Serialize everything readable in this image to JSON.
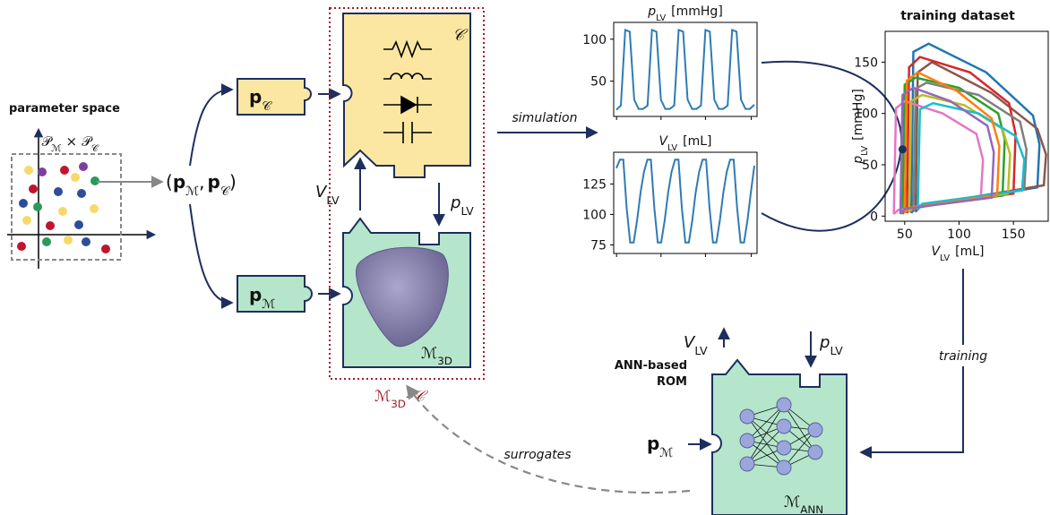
{
  "parameter_space": {
    "title": "parameter space",
    "set_m": {
      "main": "𝒫",
      "sub": "ℳ"
    },
    "times": "×",
    "set_c": {
      "main": "𝒫",
      "sub": "𝒞"
    }
  },
  "parameter_pair": {
    "open": "(",
    "first": {
      "main": "p",
      "sub": "ℳ"
    },
    "separator": ",",
    "second": {
      "main": "p",
      "sub": "𝒞"
    },
    "close": ")"
  },
  "circuit_params": {
    "main": "p",
    "sub": "𝒞"
  },
  "model_params": {
    "main": "p",
    "sub": "ℳ"
  },
  "circulation_model": "𝒞",
  "coupling": {
    "volume": {
      "main": "V",
      "sub": "LV"
    },
    "pressure": {
      "main": "p",
      "sub": "LV"
    }
  },
  "heart_model": {
    "main": "ℳ",
    "sub": "3D"
  },
  "coupled_model": {
    "main": "ℳ",
    "sub": "3D",
    "suffix": "–𝒞"
  },
  "simulation": {
    "label": "simulation",
    "pressure_plot": {
      "title": {
        "main": "p",
        "sub": "LV",
        "unit": "[mmHg]"
      },
      "ylim": [
        8,
        120
      ],
      "yticks": [
        50,
        100
      ],
      "color": "#2f7bb3",
      "values": [
        16,
        21,
        111,
        109,
        28,
        17,
        17,
        21,
        111,
        109,
        28,
        17,
        17,
        21,
        111,
        109,
        28,
        17,
        17,
        21,
        111,
        109,
        28,
        17,
        17,
        21,
        111,
        109,
        28,
        17,
        17,
        22
      ]
    },
    "volume_plot": {
      "title": {
        "main": "V",
        "sub": "LV",
        "unit": "[mL]"
      },
      "ylim": [
        68,
        151
      ],
      "yticks": [
        75,
        100,
        125
      ],
      "color": "#2f7bb3",
      "values": [
        138,
        145,
        145,
        105,
        77,
        77,
        95,
        118,
        135,
        145,
        145,
        105,
        77,
        77,
        95,
        118,
        135,
        145,
        145,
        105,
        77,
        77,
        95,
        118,
        135,
        145,
        145,
        105,
        77,
        77,
        95,
        118,
        135,
        145,
        145,
        105,
        77,
        77,
        95,
        118,
        140
      ]
    }
  },
  "training_plot": {
    "title": "training dataset",
    "xlabel": {
      "main": "V",
      "sub": "LV",
      "unit": "[mL]"
    },
    "ylabel": {
      "main": "p",
      "sub": "LV",
      "unit": "[mmHg]"
    },
    "xlim": [
      32,
      182
    ],
    "ylim": [
      -5,
      180
    ],
    "xticks": [
      50,
      100,
      150
    ],
    "yticks": [
      0,
      50,
      100,
      150
    ],
    "series": [
      {
        "color": "#1f77b4",
        "x": [
          56,
          60,
          172,
          174,
          168,
          125,
          72,
          58,
          56
        ],
        "y": [
          3,
          8,
          28,
          70,
          98,
          140,
          168,
          160,
          3
        ]
      },
      {
        "color": "#8c564b",
        "x": [
          60,
          64,
          178,
          180,
          172,
          130,
          75,
          62,
          60
        ],
        "y": [
          4,
          10,
          30,
          60,
          85,
          120,
          150,
          140,
          4
        ]
      },
      {
        "color": "#d62728",
        "x": [
          52,
          56,
          150,
          152,
          146,
          110,
          64,
          54,
          52
        ],
        "y": [
          3,
          9,
          22,
          80,
          110,
          140,
          155,
          145,
          3
        ]
      },
      {
        "color": "#2ca02c",
        "x": [
          48,
          52,
          140,
          142,
          136,
          100,
          60,
          50,
          48
        ],
        "y": [
          2,
          8,
          20,
          75,
          100,
          125,
          135,
          128,
          2
        ]
      },
      {
        "color": "#7f7f7f",
        "x": [
          58,
          62,
          160,
          162,
          156,
          118,
          70,
          60,
          58
        ],
        "y": [
          5,
          10,
          26,
          65,
          92,
          118,
          130,
          124,
          5
        ]
      },
      {
        "color": "#e377c2",
        "x": [
          40,
          44,
          120,
          122,
          116,
          85,
          50,
          42,
          40
        ],
        "y": [
          2,
          6,
          18,
          55,
          80,
          100,
          112,
          105,
          2
        ]
      },
      {
        "color": "#bcbd22",
        "x": [
          54,
          58,
          145,
          147,
          140,
          105,
          66,
          56,
          54
        ],
        "y": [
          4,
          9,
          22,
          60,
          85,
          108,
          118,
          112,
          4
        ]
      },
      {
        "color": "#17becf",
        "x": [
          62,
          66,
          158,
          160,
          152,
          118,
          76,
          64,
          62
        ],
        "y": [
          6,
          12,
          25,
          55,
          78,
          100,
          110,
          104,
          6
        ]
      },
      {
        "color": "#ff7f0e",
        "x": [
          50,
          54,
          135,
          137,
          130,
          98,
          62,
          52,
          50
        ],
        "y": [
          3,
          8,
          20,
          68,
          95,
          122,
          140,
          132,
          3
        ]
      },
      {
        "color": "#9467bd",
        "x": [
          46,
          50,
          130,
          132,
          126,
          92,
          58,
          48,
          46
        ],
        "y": [
          2,
          7,
          18,
          62,
          88,
          112,
          125,
          118,
          2
        ]
      }
    ],
    "marker": {
      "x": 48,
      "y": 65
    }
  },
  "training": "training",
  "rom": {
    "title_lines": [
      "ANN-based",
      "ROM"
    ],
    "volume": {
      "main": "V",
      "sub": "LV"
    },
    "pressure": {
      "main": "p",
      "sub": "LV"
    },
    "input": {
      "main": "p",
      "sub": "ℳ"
    },
    "name": {
      "main": "ℳ",
      "sub": "ANN"
    }
  },
  "surrogates": "surrogates"
}
